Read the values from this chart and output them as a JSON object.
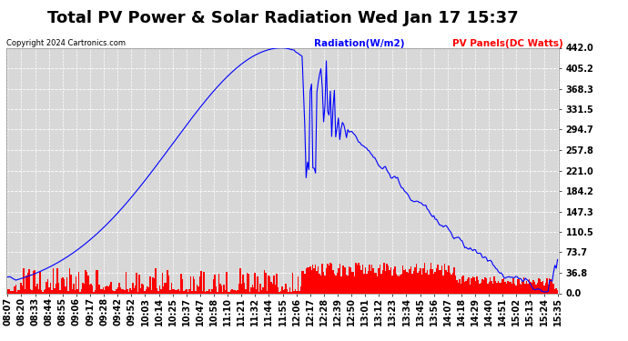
{
  "title": "Total PV Power & Solar Radiation Wed Jan 17 15:37",
  "copyright": "Copyright 2024 Cartronics.com",
  "legend_radiation": "Radiation(W/m2)",
  "legend_pv": "PV Panels(DC Watts)",
  "legend_radiation_color": "blue",
  "legend_pv_color": "red",
  "ylabel_right_values": [
    442.0,
    405.2,
    368.3,
    331.5,
    294.7,
    257.8,
    221.0,
    184.2,
    147.3,
    110.5,
    73.7,
    36.8,
    0.0
  ],
  "ymax": 442.0,
  "ymin": 0.0,
  "background_color": "#ffffff",
  "plot_bg_color": "#d8d8d8",
  "title_fontsize": 13,
  "tick_fontsize": 7,
  "x_tick_labels": [
    "08:07",
    "08:20",
    "08:33",
    "08:44",
    "08:55",
    "09:06",
    "09:17",
    "09:28",
    "09:42",
    "09:52",
    "10:03",
    "10:14",
    "10:25",
    "10:37",
    "10:47",
    "10:58",
    "11:10",
    "11:21",
    "11:32",
    "11:44",
    "11:55",
    "12:06",
    "12:17",
    "12:28",
    "12:39",
    "12:50",
    "13:01",
    "13:12",
    "13:23",
    "13:34",
    "13:45",
    "13:56",
    "14:07",
    "14:18",
    "14:29",
    "14:40",
    "14:51",
    "15:02",
    "15:13",
    "15:24",
    "15:35"
  ],
  "n_points": 410
}
